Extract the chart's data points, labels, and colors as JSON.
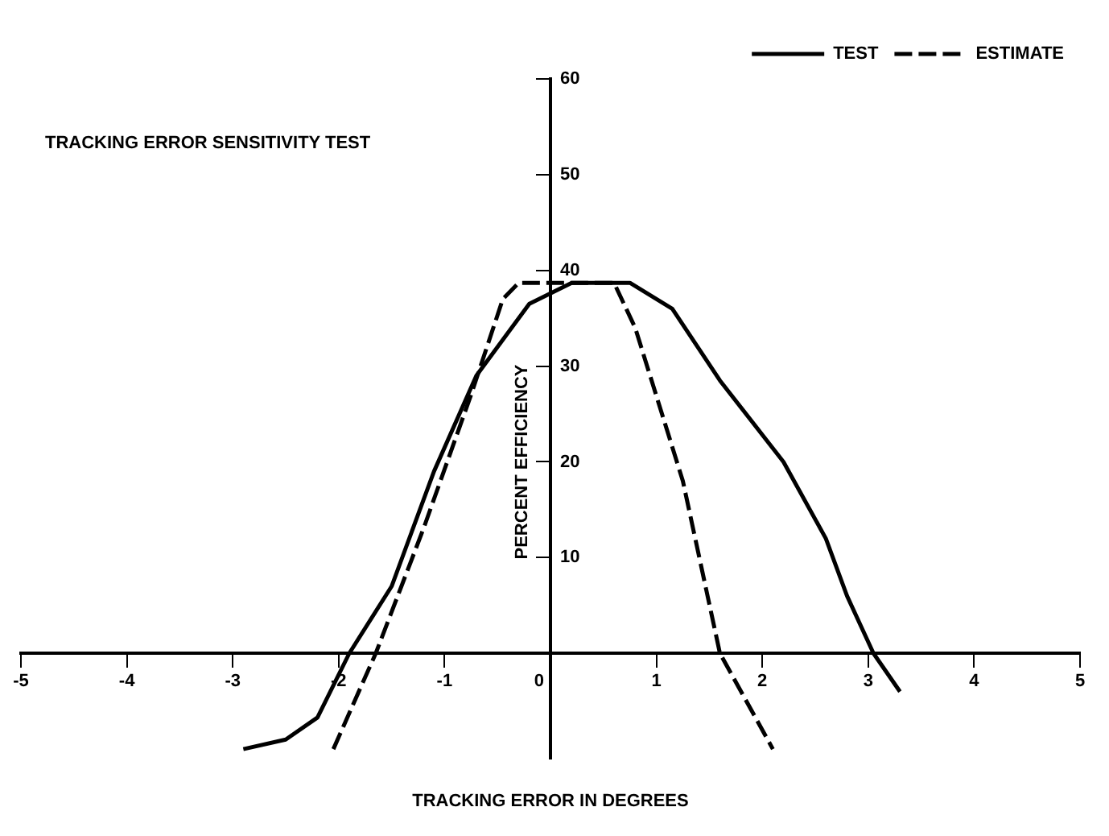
{
  "chart_data": {
    "type": "line",
    "title": "TRACKING ERROR SENSITIVITY TEST",
    "xlabel": "TRACKING ERROR IN DEGREES",
    "ylabel": "PERCENT EFFICIENCY",
    "xlim": [
      -5,
      5
    ],
    "ylim": [
      -11,
      60
    ],
    "xticks": [
      -5,
      -4,
      -3,
      -2,
      -1,
      0,
      1,
      2,
      3,
      4,
      5
    ],
    "yticks": [
      10,
      20,
      30,
      40,
      50,
      60
    ],
    "grid": false,
    "legend": "top right",
    "marker": "none",
    "series": [
      {
        "name": "TEST",
        "color": "#000000",
        "line_style": "solid",
        "x": [
          -2.9,
          -2.5,
          -2.2,
          -1.9,
          -1.5,
          -1.1,
          -0.7,
          -0.2,
          0.2,
          0.75,
          1.15,
          1.6,
          2.2,
          2.6,
          2.8,
          3.05,
          3.3
        ],
        "values": [
          -10,
          -9,
          -6.7,
          0,
          7,
          19,
          29,
          36.5,
          38.7,
          38.7,
          36,
          28.5,
          20,
          12,
          6,
          0,
          -4
        ]
      },
      {
        "name": "ESTIMATE",
        "color": "#000000",
        "line_style": "dashed",
        "x": [
          -2.05,
          -1.65,
          -1.2,
          -0.75,
          -0.45,
          -0.3,
          0.6,
          0.8,
          1.25,
          1.6,
          2.1
        ],
        "values": [
          -10,
          0,
          13,
          27,
          37,
          38.7,
          38.7,
          34,
          18,
          0,
          -10
        ]
      }
    ]
  }
}
